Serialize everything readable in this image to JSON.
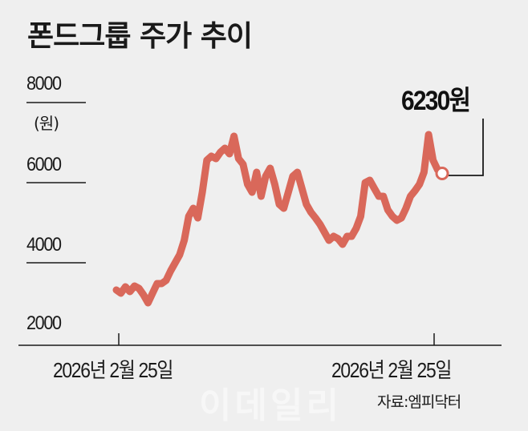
{
  "title": "폰드그룹 주가 추이",
  "y_axis": {
    "unit": "(원)",
    "ticks": [
      "8000",
      "6000",
      "4000",
      "2000"
    ]
  },
  "x_axis": {
    "start_label": "2026년 2월 25일",
    "end_label": "2026년 2월 25일"
  },
  "end_annotation": "6230원",
  "source": "자료:엠피닥터",
  "watermark": "이데일리",
  "colors": {
    "background": "#efefef",
    "line": "#d9685a",
    "text": "#1a1a1a"
  },
  "chart_data": {
    "type": "line",
    "title": "폰드그룹 주가 추이",
    "xlabel": "",
    "ylabel": "(원)",
    "ylim": [
      2000,
      8000
    ],
    "yticks": [
      2000,
      4000,
      6000,
      8000
    ],
    "xtick_labels": [
      "2026년 2월 25일",
      "2026년 2월 25일"
    ],
    "grid": false,
    "legend": null,
    "annotations": [
      {
        "label": "6230원",
        "point": "last"
      }
    ],
    "series": [
      {
        "name": "폰드그룹 주가",
        "values": [
          3320,
          3240,
          3400,
          3280,
          3420,
          3360,
          3200,
          3000,
          3240,
          3480,
          3480,
          3560,
          3800,
          4000,
          4200,
          4560,
          5160,
          5360,
          5120,
          5760,
          6560,
          6660,
          6600,
          6760,
          6860,
          6720,
          7160,
          6600,
          6460,
          5960,
          5760,
          6260,
          5660,
          6160,
          6360,
          5960,
          5460,
          5360,
          5760,
          6160,
          6260,
          5860,
          5460,
          5260,
          5120,
          4960,
          4760,
          4560,
          4660,
          4600,
          4460,
          4660,
          4660,
          4860,
          5160,
          6000,
          6060,
          5860,
          5660,
          5660,
          5320,
          5160,
          5060,
          5120,
          5360,
          5660,
          5800,
          5960,
          6260,
          7200,
          6560,
          6320,
          6230
        ]
      }
    ]
  }
}
